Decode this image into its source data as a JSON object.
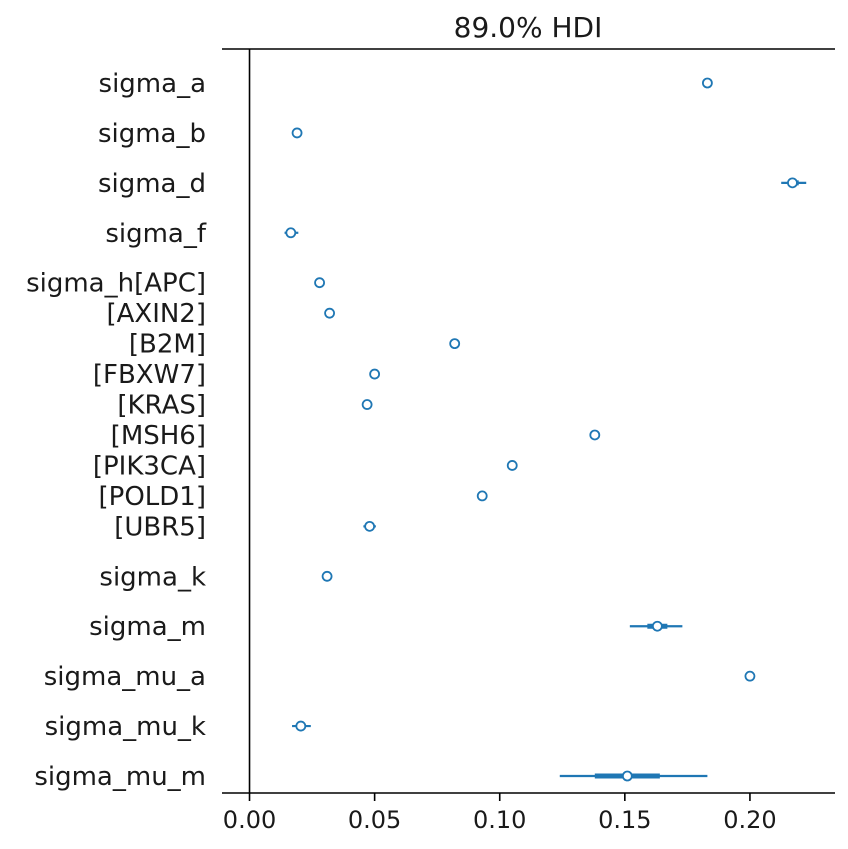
{
  "chart_data": {
    "type": "forest",
    "title": "89.0% HDI",
    "xlim": [
      -0.011,
      0.234
    ],
    "xticks": [
      0.0,
      0.05,
      0.1,
      0.15,
      0.2
    ],
    "xtick_labels": [
      "0.00",
      "0.05",
      "0.10",
      "0.15",
      "0.20"
    ],
    "reference_line_x": 0.0,
    "color": "#1f77b4",
    "rows": [
      {
        "label": "sigma_a",
        "group": "sigma_a",
        "mean": 0.183,
        "hdi": [
          0.1825,
          0.1835
        ],
        "iqr": [
          0.1828,
          0.1832
        ]
      },
      {
        "label": "sigma_b",
        "group": "sigma_b",
        "mean": 0.019,
        "hdi": [
          0.0185,
          0.0195
        ],
        "iqr": [
          0.0188,
          0.0192
        ]
      },
      {
        "label": "sigma_d",
        "group": "sigma_d",
        "mean": 0.217,
        "hdi": [
          0.2125,
          0.2225
        ],
        "iqr": [
          0.2155,
          0.2195
        ]
      },
      {
        "label": "sigma_f",
        "group": "sigma_f",
        "mean": 0.0165,
        "hdi": [
          0.014,
          0.0195
        ],
        "iqr": [
          0.0155,
          0.0178
        ]
      },
      {
        "label": "sigma_h[APC]",
        "group": "sigma_h",
        "mean": 0.028,
        "hdi": [
          0.0275,
          0.0285
        ],
        "iqr": [
          0.0278,
          0.0282
        ]
      },
      {
        "label": "[AXIN2]",
        "group": "sigma_h",
        "mean": 0.032,
        "hdi": [
          0.0315,
          0.0325
        ],
        "iqr": [
          0.0318,
          0.0322
        ]
      },
      {
        "label": "[B2M]",
        "group": "sigma_h",
        "mean": 0.082,
        "hdi": [
          0.0815,
          0.0825
        ],
        "iqr": [
          0.0818,
          0.0822
        ]
      },
      {
        "label": "[FBXW7]",
        "group": "sigma_h",
        "mean": 0.05,
        "hdi": [
          0.0495,
          0.0505
        ],
        "iqr": [
          0.0498,
          0.0502
        ]
      },
      {
        "label": "[KRAS]",
        "group": "sigma_h",
        "mean": 0.047,
        "hdi": [
          0.0465,
          0.0475
        ],
        "iqr": [
          0.0468,
          0.0472
        ]
      },
      {
        "label": "[MSH6]",
        "group": "sigma_h",
        "mean": 0.138,
        "hdi": [
          0.1375,
          0.1385
        ],
        "iqr": [
          0.1378,
          0.1382
        ]
      },
      {
        "label": "[PIK3CA]",
        "group": "sigma_h",
        "mean": 0.105,
        "hdi": [
          0.1045,
          0.1055
        ],
        "iqr": [
          0.1048,
          0.1052
        ]
      },
      {
        "label": "[POLD1]",
        "group": "sigma_h",
        "mean": 0.093,
        "hdi": [
          0.0925,
          0.0935
        ],
        "iqr": [
          0.0928,
          0.0932
        ]
      },
      {
        "label": "[UBR5]",
        "group": "sigma_h",
        "mean": 0.048,
        "hdi": [
          0.0455,
          0.0505
        ],
        "iqr": [
          0.0468,
          0.0492
        ]
      },
      {
        "label": "sigma_k",
        "group": "sigma_k",
        "mean": 0.031,
        "hdi": [
          0.0305,
          0.0315
        ],
        "iqr": [
          0.0308,
          0.0312
        ]
      },
      {
        "label": "sigma_m",
        "group": "sigma_m",
        "mean": 0.163,
        "hdi": [
          0.152,
          0.173
        ],
        "iqr": [
          0.159,
          0.167
        ]
      },
      {
        "label": "sigma_mu_a",
        "group": "sigma_mu_a",
        "mean": 0.2,
        "hdi": [
          0.1995,
          0.2005
        ],
        "iqr": [
          0.1998,
          0.2002
        ]
      },
      {
        "label": "sigma_mu_k",
        "group": "sigma_mu_k",
        "mean": 0.0205,
        "hdi": [
          0.017,
          0.0245
        ],
        "iqr": [
          0.019,
          0.0222
        ]
      },
      {
        "label": "sigma_mu_m",
        "group": "sigma_mu_m",
        "mean": 0.151,
        "hdi": [
          0.124,
          0.183
        ],
        "iqr": [
          0.138,
          0.164
        ]
      }
    ]
  }
}
